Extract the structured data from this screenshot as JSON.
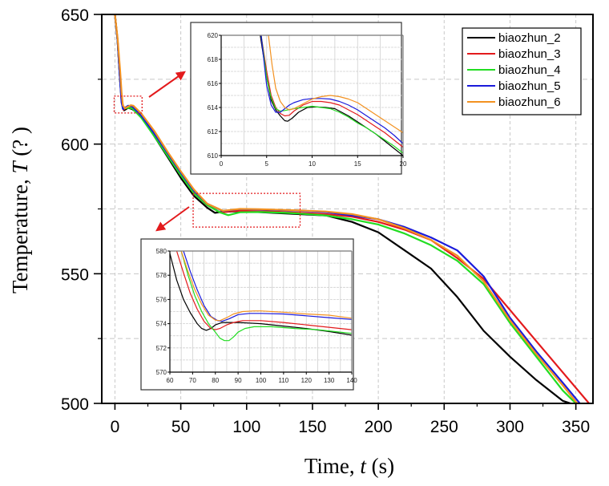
{
  "chart_data": [
    {
      "id": "main",
      "type": "line",
      "title": "",
      "xlabel_parts": [
        "Time, ",
        "t",
        " (s)"
      ],
      "ylabel_parts": [
        "Temperature, ",
        "T",
        " (?  )"
      ],
      "xlim": [
        -10,
        363
      ],
      "ylim": [
        500,
        650
      ],
      "xticks": [
        0,
        50,
        100,
        150,
        200,
        250,
        300,
        350
      ],
      "xtick_labels": [
        "0",
        "50",
        "100",
        "150",
        "200",
        "250",
        "300",
        "350"
      ],
      "yticks": [
        500,
        550,
        600,
        650
      ],
      "ytick_labels": [
        "500",
        "550",
        "600",
        "650"
      ],
      "grid": true,
      "legend_position": "top-right",
      "series": [
        {
          "name": "biaozhun_2",
          "color": "#000000",
          "x": [
            0,
            2,
            4,
            5,
            7,
            10,
            13,
            20,
            30,
            40,
            50,
            60,
            70,
            76,
            80,
            90,
            100,
            120,
            140,
            160,
            180,
            200,
            220,
            240,
            260,
            280,
            300,
            320,
            340,
            346
          ],
          "y": [
            650,
            640,
            624,
            617,
            613,
            614,
            613.5,
            611,
            603,
            595,
            587,
            580,
            575.5,
            573.5,
            573.8,
            574,
            574,
            573.5,
            573,
            572.5,
            570,
            566,
            559,
            552,
            541,
            528,
            518,
            509,
            501,
            500
          ]
        },
        {
          "name": "biaozhun_3",
          "color": "#e31a1c",
          "x": [
            0,
            2,
            4,
            5,
            6.5,
            10,
            13,
            20,
            30,
            40,
            50,
            60,
            70,
            80,
            90,
            100,
            120,
            140,
            160,
            180,
            200,
            220,
            240,
            260,
            280,
            300,
            320,
            340,
            360
          ],
          "y": [
            650,
            640,
            624,
            618,
            613.3,
            614.5,
            614,
            611.5,
            604,
            596,
            588,
            581,
            576.5,
            573.6,
            574.2,
            574.2,
            574,
            573.5,
            573,
            572,
            570,
            567,
            563,
            556,
            548,
            536,
            524,
            512,
            500
          ]
        },
        {
          "name": "biaozhun_4",
          "color": "#22dd22",
          "x": [
            0,
            2,
            4,
            5,
            6,
            10,
            13,
            20,
            30,
            40,
            50,
            60,
            70,
            80,
            86,
            95,
            110,
            130,
            140,
            160,
            180,
            200,
            220,
            240,
            260,
            280,
            300,
            320,
            340,
            350
          ],
          "y": [
            650,
            640,
            624,
            617,
            613.7,
            614,
            613.8,
            610.2,
            603,
            595.5,
            588,
            581,
            576.5,
            573.6,
            572.6,
            573.7,
            573.8,
            573.5,
            573.2,
            572.5,
            571,
            569,
            565.5,
            561,
            555,
            546,
            531,
            518,
            505,
            500
          ]
        },
        {
          "name": "biaozhun_5",
          "color": "#1a1adb",
          "x": [
            0,
            2,
            4,
            5,
            6.2,
            10,
            13,
            20,
            30,
            40,
            50,
            60,
            70,
            82,
            95,
            110,
            130,
            140,
            160,
            180,
            200,
            220,
            240,
            260,
            280,
            300,
            320,
            340,
            353
          ],
          "y": [
            650,
            640,
            624,
            616,
            613.5,
            614.8,
            614.6,
            611,
            604,
            596.5,
            589,
            582,
            577,
            574.2,
            574.9,
            574.8,
            574.5,
            574.3,
            573.8,
            572.5,
            571,
            568,
            564,
            559,
            549,
            533,
            520,
            508,
            500
          ]
        },
        {
          "name": "biaozhun_6",
          "color": "#f39221",
          "x": [
            0,
            2,
            4,
            5,
            6,
            7.5,
            12,
            14,
            20,
            30,
            40,
            50,
            60,
            70,
            82,
            95,
            110,
            130,
            140,
            160,
            180,
            200,
            220,
            240,
            260,
            280,
            300,
            320,
            340,
            351
          ],
          "y": [
            650,
            641,
            628,
            620,
            615,
            613.8,
            615,
            614.8,
            611.8,
            605,
            597,
            589.5,
            582.5,
            577,
            574.3,
            575,
            574.9,
            574.6,
            574.4,
            574,
            573,
            571,
            567.5,
            563,
            557,
            547,
            532,
            519,
            507,
            500
          ]
        }
      ]
    },
    {
      "id": "inset-early",
      "type": "line",
      "xlim": [
        0,
        20
      ],
      "ylim": [
        610,
        620
      ],
      "xticks": [
        0,
        5,
        10,
        15,
        20
      ],
      "xtick_labels": [
        "0",
        "5",
        "10",
        "15",
        "20"
      ],
      "yticks": [
        610,
        612,
        614,
        616,
        618,
        620
      ],
      "ytick_labels": [
        "610",
        "612",
        "614",
        "616",
        "618",
        "620"
      ],
      "grid": true,
      "series": [
        {
          "name": "biaozhun_2",
          "color": "#000000",
          "x": [
            4.3,
            5,
            5.5,
            6,
            6.5,
            7,
            7.3,
            7.8,
            8.5,
            9.5,
            10.5,
            11.5,
            12.5,
            14,
            15,
            16,
            17,
            18,
            19,
            20
          ],
          "y": [
            620,
            616.5,
            614.6,
            613.8,
            613.3,
            612.9,
            612.85,
            613.1,
            613.6,
            614,
            614.05,
            614,
            613.9,
            613.3,
            612.8,
            612.3,
            611.8,
            611.2,
            610.6,
            610
          ]
        },
        {
          "name": "biaozhun_3",
          "color": "#e31a1c",
          "x": [
            4.4,
            5,
            5.5,
            6,
            6.5,
            7,
            7.5,
            8,
            9,
            10,
            11,
            12,
            13,
            14,
            15,
            16,
            17,
            18,
            19,
            20
          ],
          "y": [
            620,
            617,
            615,
            614,
            613.5,
            613.3,
            613.35,
            613.7,
            614.2,
            614.5,
            614.5,
            614.4,
            614.2,
            613.8,
            613.4,
            612.9,
            612.4,
            611.9,
            611.3,
            610.7
          ]
        },
        {
          "name": "biaozhun_4",
          "color": "#22dd22",
          "x": [
            4.4,
            5,
            5.5,
            6,
            6.5,
            7,
            8,
            9,
            10,
            11,
            12,
            13,
            14,
            15,
            16,
            17,
            18,
            19,
            20
          ],
          "y": [
            620,
            616.5,
            614.8,
            613.9,
            613.7,
            613.75,
            613.9,
            614.0,
            614.1,
            614.0,
            613.9,
            613.6,
            613.2,
            612.7,
            612.3,
            611.8,
            611.3,
            610.8,
            610.2
          ]
        },
        {
          "name": "biaozhun_5",
          "color": "#1a1adb",
          "x": [
            4.4,
            5,
            5.5,
            6,
            6.5,
            7,
            7.5,
            8,
            9,
            10,
            11,
            12,
            13,
            14,
            15,
            16,
            17,
            18,
            19,
            20
          ],
          "y": [
            620,
            615.8,
            614.2,
            613.6,
            613.6,
            613.9,
            614.2,
            614.4,
            614.65,
            614.75,
            614.75,
            614.7,
            614.5,
            614.2,
            613.8,
            613.3,
            612.8,
            612.3,
            611.7,
            611.0
          ]
        },
        {
          "name": "biaozhun_6",
          "color": "#f39221",
          "x": [
            5.2,
            5.6,
            6,
            6.5,
            7,
            7.5,
            8,
            9,
            10,
            11,
            12,
            13,
            14,
            15,
            16,
            17,
            18,
            19,
            20
          ],
          "y": [
            620,
            617.5,
            615.6,
            614.5,
            614.0,
            613.8,
            613.9,
            614.3,
            614.7,
            614.9,
            615.0,
            614.9,
            614.7,
            614.4,
            613.9,
            613.4,
            612.9,
            612.4,
            611.9
          ]
        }
      ]
    },
    {
      "id": "inset-plateau",
      "type": "line",
      "xlim": [
        60,
        140
      ],
      "ylim": [
        570,
        580
      ],
      "xticks": [
        60,
        70,
        80,
        90,
        100,
        110,
        120,
        130,
        140
      ],
      "xtick_labels": [
        "60",
        "70",
        "80",
        "90",
        "100",
        "110",
        "120",
        "130",
        "140"
      ],
      "yticks": [
        570,
        572,
        574,
        576,
        578,
        580
      ],
      "ytick_labels": [
        "570",
        "572",
        "574",
        "576",
        "578",
        "580"
      ],
      "grid": true,
      "series": [
        {
          "name": "biaozhun_2",
          "color": "#000000",
          "x": [
            60,
            63,
            66,
            69,
            72,
            74,
            76,
            78,
            80,
            83,
            86,
            90,
            95,
            100,
            110,
            120,
            130,
            140
          ],
          "y": [
            579.8,
            577.6,
            576,
            574.9,
            574,
            573.6,
            573.45,
            573.6,
            573.9,
            574.1,
            574.1,
            574.1,
            574.05,
            574.0,
            573.8,
            573.6,
            573.35,
            573.05
          ]
        },
        {
          "name": "biaozhun_3",
          "color": "#e31a1c",
          "x": [
            63,
            66,
            69,
            72,
            75,
            78,
            80,
            82,
            85,
            88,
            92,
            100,
            110,
            120,
            130,
            140
          ],
          "y": [
            580,
            578.2,
            576.5,
            575.2,
            574.2,
            573.6,
            573.5,
            573.6,
            573.9,
            574.1,
            574.25,
            574.25,
            574.1,
            573.9,
            573.7,
            573.5
          ]
        },
        {
          "name": "biaozhun_4",
          "color": "#22dd22",
          "x": [
            65,
            68,
            71,
            74,
            77,
            80,
            82,
            84,
            86,
            88,
            90,
            93,
            97,
            105,
            115,
            125,
            140
          ],
          "y": [
            580,
            578,
            576.3,
            575,
            574,
            573.3,
            572.8,
            572.6,
            572.6,
            572.9,
            573.3,
            573.6,
            573.75,
            573.75,
            573.6,
            573.5,
            573.2
          ]
        },
        {
          "name": "biaozhun_5",
          "color": "#1a1adb",
          "x": [
            66,
            69,
            72,
            75,
            78,
            81,
            83,
            86,
            90,
            95,
            100,
            110,
            120,
            130,
            140
          ],
          "y": [
            580,
            578.3,
            576.8,
            575.5,
            574.6,
            574.25,
            574.2,
            574.4,
            574.75,
            574.85,
            574.85,
            574.8,
            574.65,
            574.5,
            574.35
          ]
        },
        {
          "name": "biaozhun_6",
          "color": "#f39221",
          "x": [
            65,
            68,
            71,
            74,
            77,
            80,
            82,
            85,
            88,
            92,
            97,
            100,
            110,
            120,
            130,
            140
          ],
          "y": [
            580,
            578.3,
            576.8,
            575.6,
            574.7,
            574.3,
            574.25,
            574.5,
            574.8,
            575.0,
            575.05,
            575.05,
            574.95,
            574.8,
            574.7,
            574.45
          ]
        }
      ]
    }
  ],
  "legend": {
    "entries": [
      {
        "label": "biaozhun_2",
        "color": "#000000"
      },
      {
        "label": "biaozhun_3",
        "color": "#e31a1c"
      },
      {
        "label": "biaozhun_4",
        "color": "#22dd22"
      },
      {
        "label": "biaozhun_5",
        "color": "#1a1adb"
      },
      {
        "label": "biaozhun_6",
        "color": "#f39221"
      }
    ]
  },
  "annotations": {
    "zoom_regions": [
      {
        "name": "early-dip-region",
        "xrange": [
          0,
          20
        ],
        "yrange": [
          610,
          620
        ],
        "color": "#e31a1c"
      },
      {
        "name": "plateau-region",
        "xrange": [
          60,
          140
        ],
        "yrange": [
          570,
          580
        ],
        "color": "#e31a1c"
      }
    ],
    "arrow_color": "#e31a1c"
  }
}
